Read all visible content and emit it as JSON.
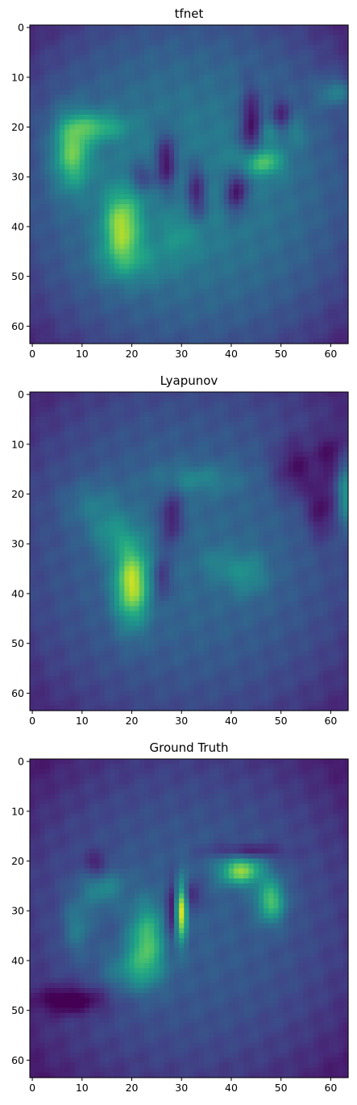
{
  "chart_data": [
    {
      "type": "heatmap",
      "title": "tfnet",
      "grid_size": [
        64,
        64
      ],
      "colormap": "viridis",
      "xlim": [
        -0.5,
        63.5
      ],
      "ylim": [
        63.5,
        -0.5
      ],
      "x_ticks": [
        0,
        10,
        20,
        30,
        40,
        50,
        60
      ],
      "y_ticks": [
        0,
        10,
        20,
        30,
        40,
        50,
        60
      ],
      "x_tick_labels": [
        "0",
        "10",
        "20",
        "30",
        "40",
        "50",
        "60"
      ],
      "y_tick_labels": [
        "0",
        "10",
        "20",
        "30",
        "40",
        "50",
        "60"
      ],
      "base": 0.42,
      "corner_falloff": 0.75,
      "blobs": [
        {
          "x": 8,
          "y": 25,
          "sx": 2.6,
          "sy": 5,
          "a": 0.45
        },
        {
          "x": 13,
          "y": 20,
          "sx": 4,
          "sy": 2,
          "a": 0.3
        },
        {
          "x": 18,
          "y": 40,
          "sx": 2.6,
          "sy": 5,
          "a": 0.5
        },
        {
          "x": 20,
          "y": 47,
          "sx": 5,
          "sy": 3,
          "a": 0.15
        },
        {
          "x": 46,
          "y": 27,
          "sx": 3,
          "sy": 2,
          "a": 0.38
        },
        {
          "x": 50,
          "y": 21,
          "sx": 3,
          "sy": 2,
          "a": 0.22
        },
        {
          "x": 61,
          "y": 13,
          "sx": 2.5,
          "sy": 2,
          "a": 0.2
        },
        {
          "x": 30,
          "y": 42,
          "sx": 3,
          "sy": 3,
          "a": 0.12
        },
        {
          "x": 27,
          "y": 27,
          "sx": 1.5,
          "sy": 4,
          "a": -0.35
        },
        {
          "x": 33,
          "y": 33,
          "sx": 1.5,
          "sy": 4,
          "a": -0.3
        },
        {
          "x": 41,
          "y": 33,
          "sx": 1.5,
          "sy": 3,
          "a": -0.35
        },
        {
          "x": 44,
          "y": 20,
          "sx": 1.5,
          "sy": 5,
          "a": -0.35
        },
        {
          "x": 50,
          "y": 19,
          "sx": 1.5,
          "sy": 3,
          "a": -0.3
        },
        {
          "x": 22,
          "y": 30,
          "sx": 2,
          "sy": 2,
          "a": -0.2
        }
      ]
    },
    {
      "type": "heatmap",
      "title": "Lyapunov",
      "grid_size": [
        64,
        64
      ],
      "colormap": "viridis",
      "xlim": [
        -0.5,
        63.5
      ],
      "ylim": [
        63.5,
        -0.5
      ],
      "x_ticks": [
        0,
        10,
        20,
        30,
        40,
        50,
        60
      ],
      "y_ticks": [
        0,
        10,
        20,
        30,
        40,
        50,
        60
      ],
      "x_tick_labels": [
        "0",
        "10",
        "20",
        "30",
        "40",
        "50",
        "60"
      ],
      "y_tick_labels": [
        "0",
        "10",
        "20",
        "30",
        "40",
        "50",
        "60"
      ],
      "base": 0.34,
      "corner_falloff": 0.7,
      "blobs": [
        {
          "x": 20,
          "y": 38,
          "sx": 2.4,
          "sy": 5.5,
          "a": 0.6
        },
        {
          "x": 16,
          "y": 28,
          "sx": 3,
          "sy": 3,
          "a": 0.18
        },
        {
          "x": 12,
          "y": 22,
          "sx": 4,
          "sy": 3,
          "a": 0.12
        },
        {
          "x": 33,
          "y": 17,
          "sx": 6,
          "sy": 2,
          "a": 0.14
        },
        {
          "x": 43,
          "y": 36,
          "sx": 3,
          "sy": 3,
          "a": 0.18
        },
        {
          "x": 37,
          "y": 34,
          "sx": 2,
          "sy": 2,
          "a": 0.1
        },
        {
          "x": 63,
          "y": 20,
          "sx": 1.2,
          "sy": 5,
          "a": 0.3
        },
        {
          "x": 28,
          "y": 25,
          "sx": 1.5,
          "sy": 4,
          "a": -0.25
        },
        {
          "x": 26,
          "y": 37,
          "sx": 1.2,
          "sy": 3,
          "a": -0.2
        },
        {
          "x": 53,
          "y": 15,
          "sx": 3,
          "sy": 4,
          "a": -0.2
        },
        {
          "x": 58,
          "y": 23,
          "sx": 2,
          "sy": 4,
          "a": -0.2
        },
        {
          "x": 60,
          "y": 12,
          "sx": 2,
          "sy": 3,
          "a": -0.15
        }
      ]
    },
    {
      "type": "heatmap",
      "title": "Ground Truth",
      "grid_size": [
        64,
        64
      ],
      "colormap": "viridis",
      "xlim": [
        -0.5,
        63.5
      ],
      "ylim": [
        63.5,
        -0.5
      ],
      "x_ticks": [
        0,
        10,
        20,
        30,
        40,
        50,
        60
      ],
      "y_ticks": [
        0,
        10,
        20,
        30,
        40,
        50,
        60
      ],
      "x_tick_labels": [
        "0",
        "10",
        "20",
        "30",
        "40",
        "50",
        "60"
      ],
      "y_tick_labels": [
        "0",
        "10",
        "20",
        "30",
        "40",
        "50",
        "60"
      ],
      "base": 0.3,
      "corner_falloff": 0.8,
      "blobs": [
        {
          "x": 30,
          "y": 30,
          "sx": 0.8,
          "sy": 4,
          "a": 0.68
        },
        {
          "x": 42,
          "y": 22,
          "sx": 3,
          "sy": 2,
          "a": 0.55
        },
        {
          "x": 48,
          "y": 28,
          "sx": 2,
          "sy": 3,
          "a": 0.45
        },
        {
          "x": 23,
          "y": 36,
          "sx": 2.5,
          "sy": 5,
          "a": 0.42
        },
        {
          "x": 20,
          "y": 42,
          "sx": 4,
          "sy": 3,
          "a": 0.2
        },
        {
          "x": 14,
          "y": 25,
          "sx": 3,
          "sy": 3,
          "a": 0.22
        },
        {
          "x": 9,
          "y": 33,
          "sx": 2,
          "sy": 4,
          "a": 0.18
        },
        {
          "x": 28,
          "y": 30,
          "sx": 0.8,
          "sy": 4,
          "a": -0.28
        },
        {
          "x": 32,
          "y": 27,
          "sx": 1.5,
          "sy": 2,
          "a": -0.2
        },
        {
          "x": 8,
          "y": 48,
          "sx": 5,
          "sy": 2,
          "a": -0.25
        },
        {
          "x": 13,
          "y": 21,
          "sx": 2,
          "sy": 2,
          "a": -0.2
        },
        {
          "x": 43,
          "y": 18,
          "sx": 5,
          "sy": 1,
          "a": -0.2
        }
      ]
    }
  ]
}
